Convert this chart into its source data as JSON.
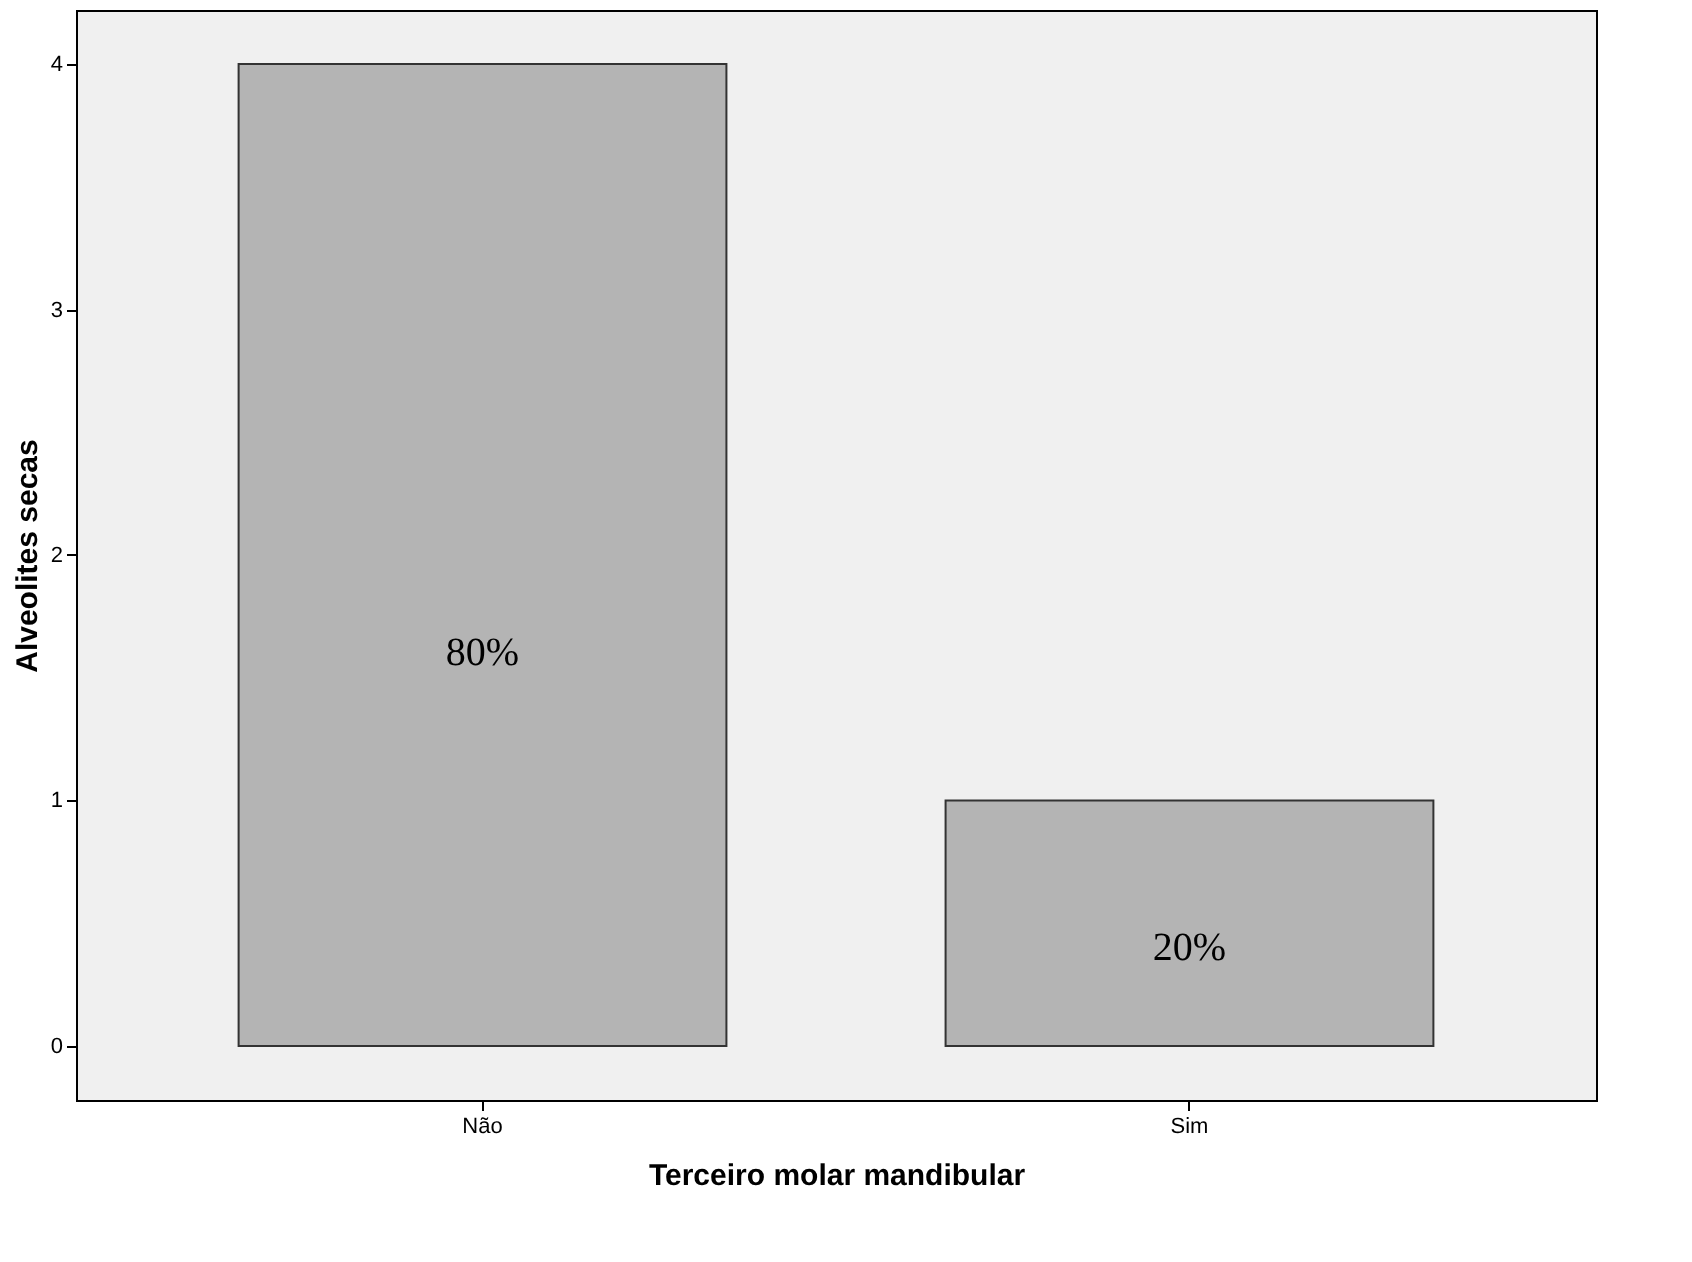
{
  "chart_data": {
    "type": "bar",
    "xlabel": "Terceiro molar mandibular",
    "ylabel": "Alveolites secas",
    "categories": [
      "Não",
      "Sim"
    ],
    "values": [
      4,
      1
    ],
    "color": "#b4b4b4",
    "annotations": [
      "80%",
      "20%"
    ],
    "ylim": [
      -0.22,
      4.22
    ],
    "yticks": [
      0,
      1,
      2,
      3,
      4
    ],
    "grid": false
  }
}
